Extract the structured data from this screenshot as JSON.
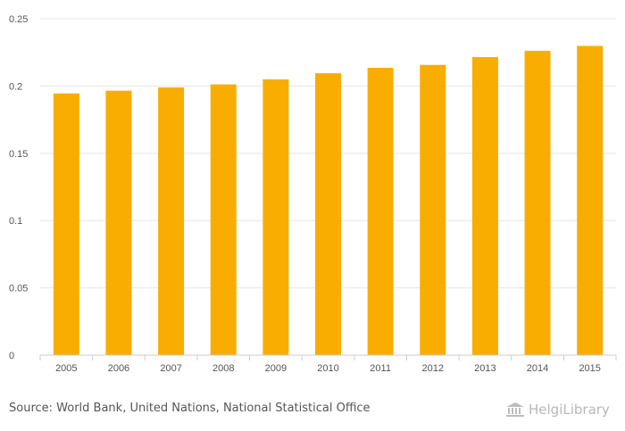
{
  "chart_data": {
    "type": "bar",
    "categories": [
      "2005",
      "2006",
      "2007",
      "2008",
      "2009",
      "2010",
      "2011",
      "2012",
      "2013",
      "2014",
      "2015"
    ],
    "values": [
      0.1945,
      0.1965,
      0.199,
      0.2012,
      0.205,
      0.2095,
      0.2135,
      0.2157,
      0.2215,
      0.2262,
      0.2298
    ],
    "ylim": [
      0,
      0.25
    ],
    "yticks": [
      {
        "value": 0,
        "label": "0"
      },
      {
        "value": 0.05,
        "label": "0.05"
      },
      {
        "value": 0.1,
        "label": "0.1"
      },
      {
        "value": 0.15,
        "label": "0.15"
      },
      {
        "value": 0.2,
        "label": "0.2"
      },
      {
        "value": 0.25,
        "label": "0.25"
      }
    ],
    "title": "",
    "xlabel": "",
    "ylabel": "",
    "grid": true,
    "bar_color": "#f9ad00"
  },
  "footer": {
    "source": "Source: World Bank, United Nations, National Statistical Office",
    "logo_text": "HelgiLibrary"
  },
  "colors": {
    "grid": "#e6e6e6",
    "axis": "#cccccc",
    "text": "#555555"
  }
}
